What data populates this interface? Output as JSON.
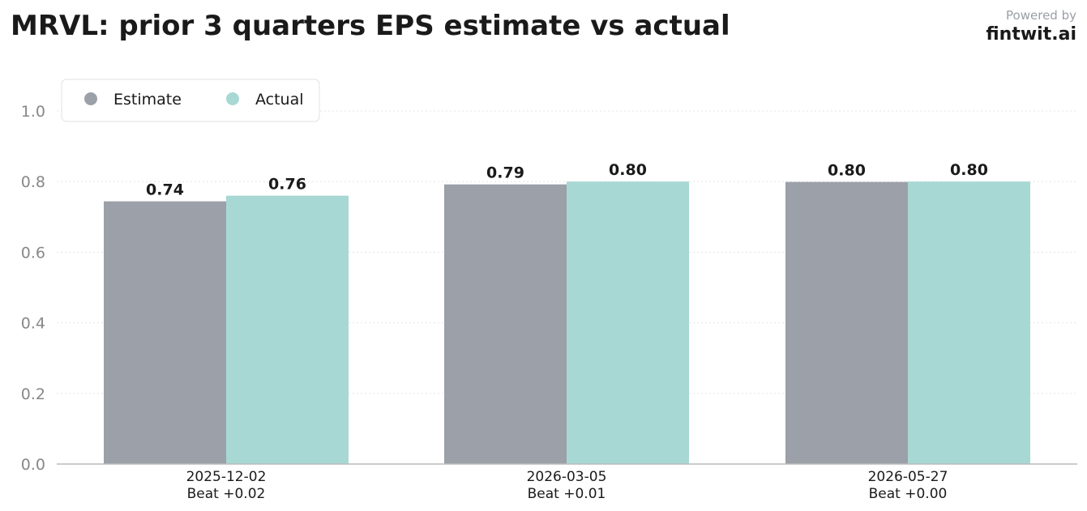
{
  "header": {
    "title": "MRVL: prior 3 quarters EPS estimate vs actual",
    "powered_by": "Powered by",
    "brand": "fintwit.ai"
  },
  "colors": {
    "estimate": "#9ca0a8",
    "actual": "#a8d8d4",
    "grid": "#e4e4e4",
    "axis": "#bbbbbb"
  },
  "chart_data": {
    "type": "bar",
    "title": "MRVL: prior 3 quarters EPS estimate vs actual",
    "categories": [
      "2025-12-02",
      "2026-03-05",
      "2026-05-27"
    ],
    "category_sublabels": [
      "Beat +0.02",
      "Beat +0.01",
      "Beat +0.00"
    ],
    "series": [
      {
        "name": "Estimate",
        "values": [
          0.744,
          0.792,
          0.799
        ],
        "labels": [
          "0.74",
          "0.79",
          "0.80"
        ],
        "color": "#9ca0a8"
      },
      {
        "name": "Actual",
        "values": [
          0.76,
          0.8,
          0.8
        ],
        "labels": [
          "0.76",
          "0.80",
          "0.80"
        ],
        "color": "#a8d8d4"
      }
    ],
    "yticks": [
      "0.0",
      "0.2",
      "0.4",
      "0.6",
      "0.8",
      "1.0"
    ],
    "ylim": [
      0,
      1.1
    ],
    "grid": true,
    "legend": "top-left",
    "xlabel": "",
    "ylabel": ""
  }
}
